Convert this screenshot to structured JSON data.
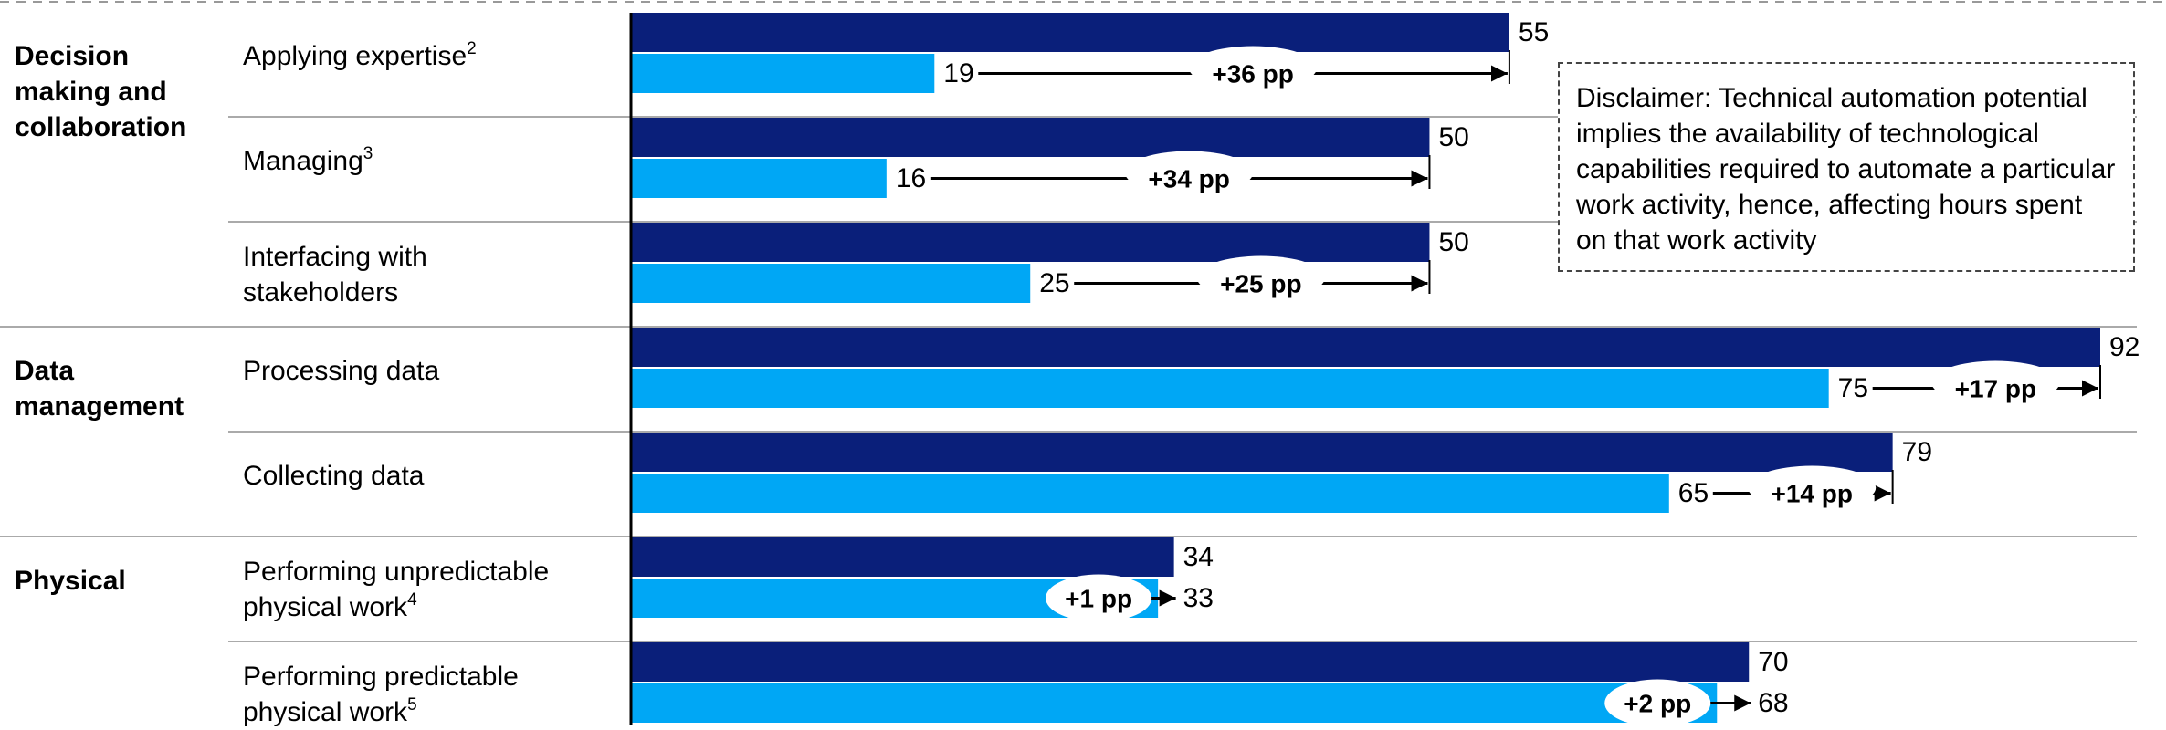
{
  "chart_data": {
    "type": "bar",
    "orientation": "horizontal",
    "categories": [
      "Applying expertise",
      "Managing",
      "Interfacing with stakeholders",
      "Processing data",
      "Collecting data",
      "Performing unpredictable physical work",
      "Performing predictable physical work"
    ],
    "category_groups": [
      {
        "label": "Decision making and collaboration",
        "count": 3
      },
      {
        "label": "Data management",
        "count": 2
      },
      {
        "label": "Physical",
        "count": 2
      }
    ],
    "footnotes": [
      "2",
      "3",
      "",
      "",
      "",
      "4",
      "5"
    ],
    "series": [
      {
        "values": [
          55,
          50,
          50,
          92,
          79,
          34,
          70
        ],
        "color": "#0a1f7a"
      },
      {
        "values": [
          19,
          16,
          25,
          75,
          65,
          33,
          68
        ],
        "color": "#00a7f5"
      }
    ],
    "differences": [
      "+36 pp",
      "+34 pp",
      "+25 pp",
      "+17 pp",
      "+14 pp",
      "+1 pp",
      "+2 pp"
    ],
    "xlim": [
      0,
      92
    ]
  },
  "disclaimer": "Disclaimer: Technical automation potential implies the availability of technological capabilities required to automate a particular work activity, hence, affecting hours spent on that work activity"
}
